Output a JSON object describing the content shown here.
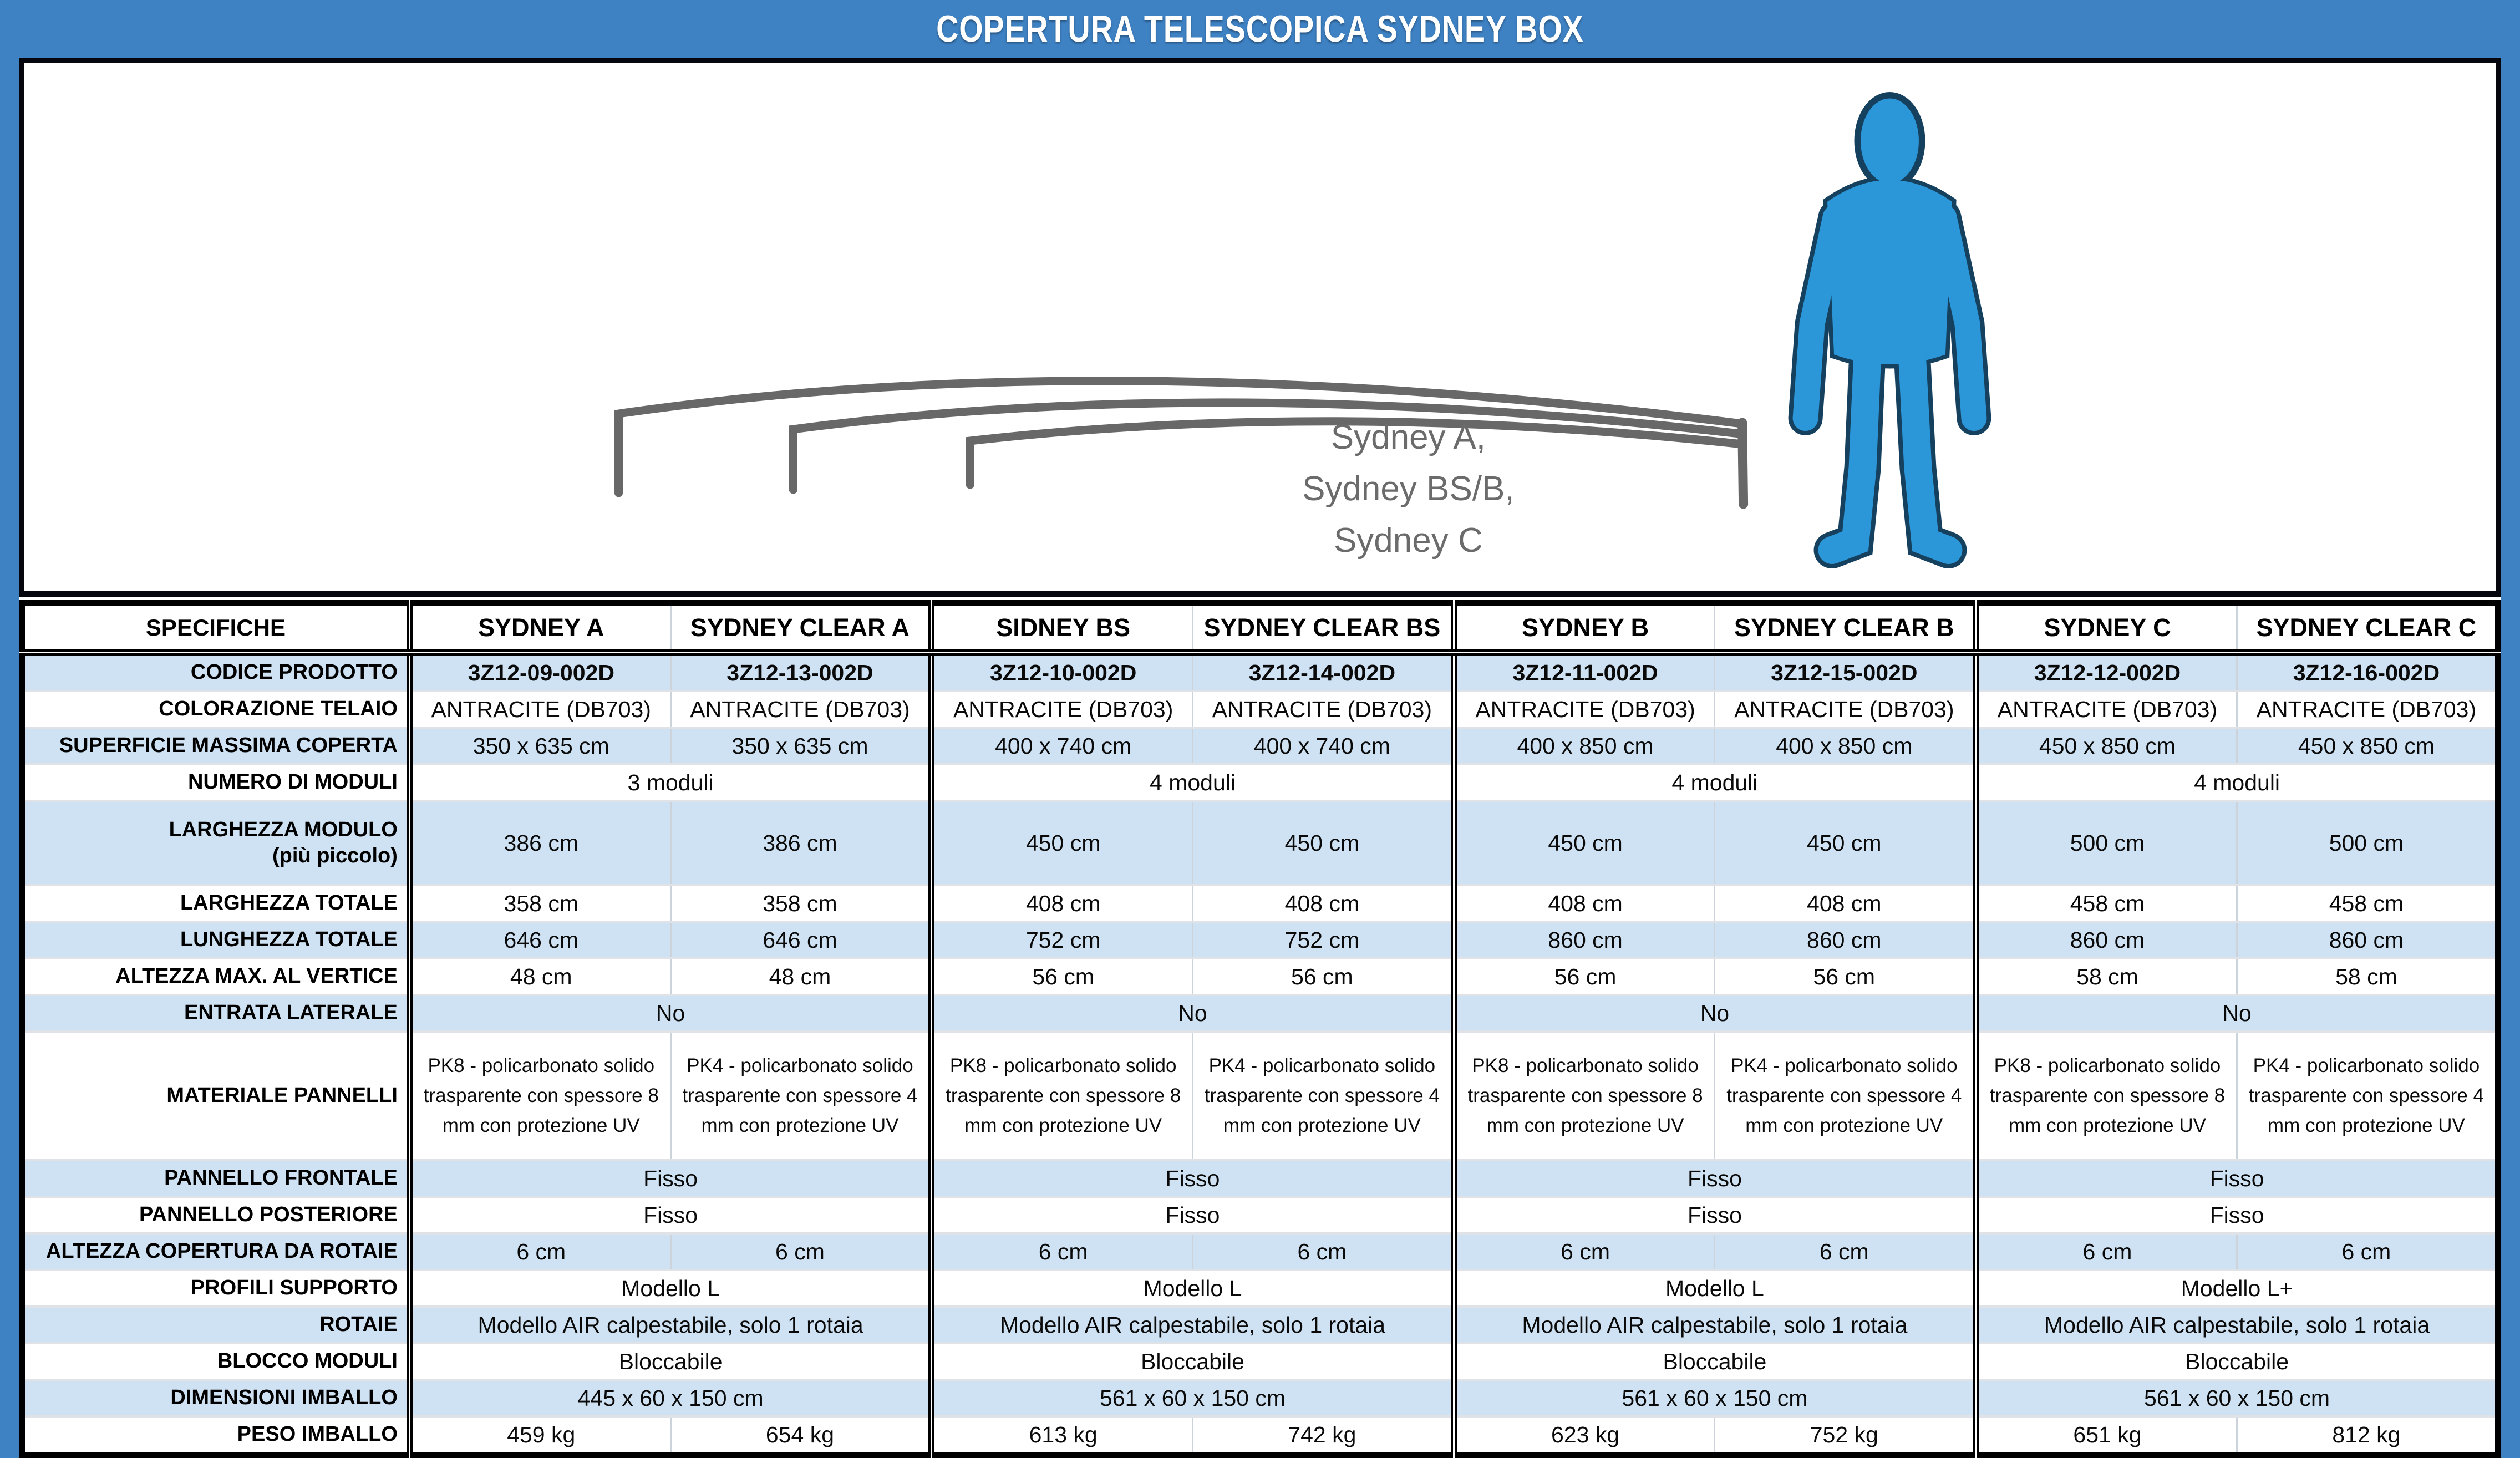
{
  "title": "COPERTURA TELESCOPICA SYDNEY BOX",
  "illustration": {
    "caption_lines": [
      "Sydney A,",
      "Sydney BS/B,",
      "Sydney C"
    ]
  },
  "table": {
    "spec_header": "SPECIFICHE",
    "columns": [
      "SYDNEY A",
      "SYDNEY CLEAR A",
      "SIDNEY BS",
      "SYDNEY CLEAR BS",
      "SYDNEY B",
      "SYDNEY CLEAR B",
      "SYDNEY C",
      "SYDNEY CLEAR C"
    ],
    "rows": [
      {
        "label": "CODICE PRODOTTO",
        "bold": true,
        "values": [
          "3Z12-09-002D",
          "3Z12-13-002D",
          "3Z12-10-002D",
          "3Z12-14-002D",
          "3Z12-11-002D",
          "3Z12-15-002D",
          "3Z12-12-002D",
          "3Z12-16-002D"
        ]
      },
      {
        "label": "COLORAZIONE TELAIO",
        "values": [
          "ANTRACITE (DB703)",
          "ANTRACITE (DB703)",
          "ANTRACITE (DB703)",
          "ANTRACITE (DB703)",
          "ANTRACITE (DB703)",
          "ANTRACITE (DB703)",
          "ANTRACITE (DB703)",
          "ANTRACITE (DB703)"
        ]
      },
      {
        "label": "SUPERFICIE MASSIMA COPERTA",
        "values": [
          "350 x 635 cm",
          "350 x 635 cm",
          "400 x 740 cm",
          "400 x 740 cm",
          "400 x 850 cm",
          "400 x 850 cm",
          "450 x 850 cm",
          "450 x 850 cm"
        ]
      },
      {
        "label": "NUMERO DI MODULI",
        "group": true,
        "values": [
          "3 moduli",
          "4 moduli",
          "4 moduli",
          "4 moduli"
        ]
      },
      {
        "label": "LARGHEZZA MODULO\n(più piccolo)",
        "tall": true,
        "values": [
          "386 cm",
          "386 cm",
          "450 cm",
          "450 cm",
          "450 cm",
          "450 cm",
          "500 cm",
          "500 cm"
        ]
      },
      {
        "label": "LARGHEZZA TOTALE",
        "values": [
          "358 cm",
          "358 cm",
          "408 cm",
          "408 cm",
          "408 cm",
          "408 cm",
          "458 cm",
          "458 cm"
        ]
      },
      {
        "label": "LUNGHEZZA TOTALE",
        "values": [
          "646 cm",
          "646 cm",
          "752 cm",
          "752 cm",
          "860 cm",
          "860 cm",
          "860 cm",
          "860 cm"
        ]
      },
      {
        "label": "ALTEZZA MAX. AL VERTICE",
        "values": [
          "48 cm",
          "48 cm",
          "56 cm",
          "56 cm",
          "56 cm",
          "56 cm",
          "58 cm",
          "58 cm"
        ]
      },
      {
        "label": "ENTRATA LATERALE",
        "group": true,
        "values": [
          "No",
          "No",
          "No",
          "No"
        ]
      },
      {
        "label": "MATERIALE PANNELLI",
        "wrap": true,
        "values": [
          "PK8 - policarbonato solido trasparente con spessore 8 mm con protezione UV",
          "PK4 - policarbonato solido trasparente con spessore 4 mm con protezione UV",
          "PK8 - policarbonato solido trasparente con spessore 8 mm con protezione UV",
          "PK4 - policarbonato solido trasparente con spessore 4 mm con protezione UV",
          "PK8 - policarbonato solido trasparente con spessore 8 mm con protezione UV",
          "PK4 - policarbonato solido trasparente con spessore 4 mm con protezione UV",
          "PK8 - policarbonato solido trasparente con spessore 8 mm con protezione UV",
          "PK4 - policarbonato solido trasparente con spessore 4 mm con protezione UV"
        ]
      },
      {
        "label": "PANNELLO FRONTALE",
        "group": true,
        "values": [
          "Fisso",
          "Fisso",
          "Fisso",
          "Fisso"
        ]
      },
      {
        "label": "PANNELLO POSTERIORE",
        "group": true,
        "values": [
          "Fisso",
          "Fisso",
          "Fisso",
          "Fisso"
        ]
      },
      {
        "label": "ALTEZZA COPERTURA DA ROTAIE",
        "values": [
          "6 cm",
          "6 cm",
          "6 cm",
          "6 cm",
          "6 cm",
          "6 cm",
          "6 cm",
          "6 cm"
        ]
      },
      {
        "label": "PROFILI SUPPORTO",
        "group": true,
        "values": [
          "Modello L",
          "Modello L",
          "Modello L",
          "Modello L+"
        ]
      },
      {
        "label": "ROTAIE",
        "group": true,
        "values": [
          "Modello AIR calpestabile, solo 1 rotaia",
          "Modello AIR calpestabile, solo 1 rotaia",
          "Modello AIR calpestabile, solo 1 rotaia",
          "Modello AIR calpestabile, solo 1 rotaia"
        ]
      },
      {
        "label": "BLOCCO MODULI",
        "group": true,
        "values": [
          "Bloccabile",
          "Bloccabile",
          "Bloccabile",
          "Bloccabile"
        ]
      },
      {
        "label": "DIMENSIONI IMBALLO",
        "group": true,
        "values": [
          "445 x 60 x 150 cm",
          "561 x 60 x 150 cm",
          "561 x 60 x 150 cm",
          "561 x 60 x 150 cm"
        ]
      },
      {
        "label": "PESO IMBALLO",
        "values": [
          "459 kg",
          "654 kg",
          "613 kg",
          "742 kg",
          "623 kg",
          "752 kg",
          "651 kg",
          "812 kg"
        ]
      }
    ]
  },
  "colors": {
    "page_blue": "#3e82c4",
    "row_blue": "#cfe2f3",
    "figure_blue": "#2b96d8",
    "arc_line_gray": "#686868",
    "caption_gray": "#6b6b6b",
    "border_black": "#000000",
    "title_white": "#ffffff"
  }
}
